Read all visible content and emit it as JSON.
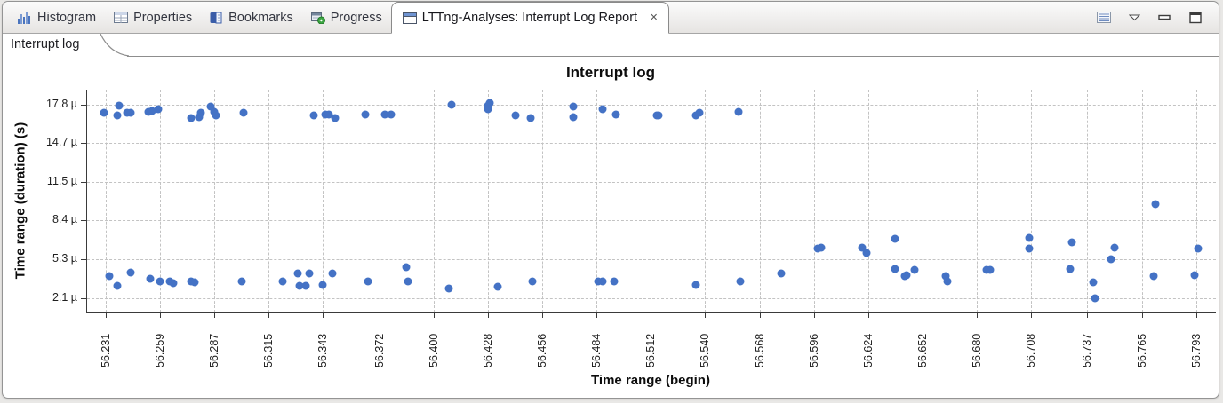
{
  "view": {
    "tabs": [
      {
        "label": "Histogram",
        "icon": "histogram-icon",
        "active": false
      },
      {
        "label": "Properties",
        "icon": "properties-icon",
        "active": false
      },
      {
        "label": "Bookmarks",
        "icon": "bookmarks-icon",
        "active": false
      },
      {
        "label": "Progress",
        "icon": "progress-icon",
        "active": false
      },
      {
        "label": "LTTng-Analyses: Interrupt Log Report",
        "icon": "report-icon",
        "active": true,
        "closable": true
      }
    ],
    "close_glyph": "✕",
    "toolbar_icons": [
      "view-list-icon",
      "view-menu-icon",
      "minimize-icon",
      "maximize-icon"
    ],
    "subtab": "Interrupt log"
  },
  "chart_data": {
    "type": "scatter",
    "title": "Interrupt log",
    "xlabel": "Time range (begin)",
    "ylabel": "Time range (duration) (s)",
    "xlim": [
      56.2214,
      56.8032
    ],
    "ylim": [
      0.95,
      19.0
    ],
    "grid": "dashed",
    "legend": "none",
    "point_color": "#4472c5",
    "xticks": [
      "56.231",
      "56.259",
      "56.287",
      "56.315",
      "56.343",
      "56.372",
      "56.400",
      "56.428",
      "56.456",
      "56.484",
      "56.512",
      "56.540",
      "56.568",
      "56.596",
      "56.624",
      "56.652",
      "56.680",
      "56.708",
      "56.737",
      "56.765",
      "56.793"
    ],
    "yticks": [
      {
        "label": "2.1 µ",
        "value": 2.1
      },
      {
        "label": "5.3 µ",
        "value": 5.3
      },
      {
        "label": "8.4 µ",
        "value": 8.4
      },
      {
        "label": "11.5 µ",
        "value": 11.5
      },
      {
        "label": "14.7 µ",
        "value": 14.7
      },
      {
        "label": "17.8 µ",
        "value": 17.8
      }
    ],
    "points": [
      [
        56.23,
        17.1
      ],
      [
        56.237,
        16.9
      ],
      [
        56.238,
        17.7
      ],
      [
        56.242,
        17.1
      ],
      [
        56.244,
        17.1
      ],
      [
        56.253,
        17.2
      ],
      [
        56.255,
        17.3
      ],
      [
        56.258,
        17.4
      ],
      [
        56.275,
        16.7
      ],
      [
        56.279,
        16.8
      ],
      [
        56.28,
        17.1
      ],
      [
        56.285,
        17.6
      ],
      [
        56.287,
        17.2
      ],
      [
        56.288,
        16.9
      ],
      [
        56.302,
        17.1
      ],
      [
        56.338,
        16.9
      ],
      [
        56.344,
        17.0
      ],
      [
        56.346,
        17.0
      ],
      [
        56.349,
        16.7
      ],
      [
        56.365,
        17.0
      ],
      [
        56.375,
        17.0
      ],
      [
        56.378,
        17.0
      ],
      [
        56.409,
        17.8
      ],
      [
        56.428,
        17.4
      ],
      [
        56.428,
        17.7
      ],
      [
        56.429,
        17.9
      ],
      [
        56.442,
        16.9
      ],
      [
        56.45,
        16.7
      ],
      [
        56.472,
        17.6
      ],
      [
        56.472,
        16.8
      ],
      [
        56.487,
        17.4
      ],
      [
        56.494,
        17.0
      ],
      [
        56.515,
        16.9
      ],
      [
        56.516,
        16.9
      ],
      [
        56.535,
        16.9
      ],
      [
        56.537,
        17.1
      ],
      [
        56.557,
        17.2
      ],
      [
        56.233,
        3.9
      ],
      [
        56.237,
        3.1
      ],
      [
        56.244,
        4.2
      ],
      [
        56.254,
        3.7
      ],
      [
        56.259,
        3.5
      ],
      [
        56.264,
        3.5
      ],
      [
        56.266,
        3.3
      ],
      [
        56.275,
        3.5
      ],
      [
        56.277,
        3.4
      ],
      [
        56.301,
        3.5
      ],
      [
        56.322,
        3.5
      ],
      [
        56.33,
        4.1
      ],
      [
        56.331,
        3.1
      ],
      [
        56.334,
        3.1
      ],
      [
        56.336,
        4.1
      ],
      [
        56.343,
        3.2
      ],
      [
        56.348,
        4.1
      ],
      [
        56.366,
        3.5
      ],
      [
        56.386,
        4.6
      ],
      [
        56.387,
        3.5
      ],
      [
        56.408,
        2.9
      ],
      [
        56.433,
        3.0
      ],
      [
        56.451,
        3.5
      ],
      [
        56.485,
        3.5
      ],
      [
        56.487,
        3.5
      ],
      [
        56.493,
        3.5
      ],
      [
        56.535,
        3.2
      ],
      [
        56.558,
        3.5
      ],
      [
        56.579,
        4.1
      ],
      [
        56.598,
        6.1
      ],
      [
        56.6,
        6.2
      ],
      [
        56.621,
        6.2
      ],
      [
        56.623,
        5.8
      ],
      [
        56.638,
        6.9
      ],
      [
        56.638,
        4.5
      ],
      [
        56.643,
        3.9
      ],
      [
        56.644,
        4.0
      ],
      [
        56.648,
        4.4
      ],
      [
        56.664,
        3.9
      ],
      [
        56.665,
        3.5
      ],
      [
        56.685,
        4.4
      ],
      [
        56.687,
        4.4
      ],
      [
        56.707,
        7.0
      ],
      [
        56.707,
        6.1
      ],
      [
        56.728,
        4.5
      ],
      [
        56.729,
        6.6
      ],
      [
        56.74,
        3.4
      ],
      [
        56.741,
        2.1
      ],
      [
        56.749,
        5.3
      ],
      [
        56.751,
        6.2
      ],
      [
        56.771,
        3.9
      ],
      [
        56.772,
        9.7
      ],
      [
        56.792,
        4.0
      ],
      [
        56.794,
        6.1
      ]
    ]
  }
}
